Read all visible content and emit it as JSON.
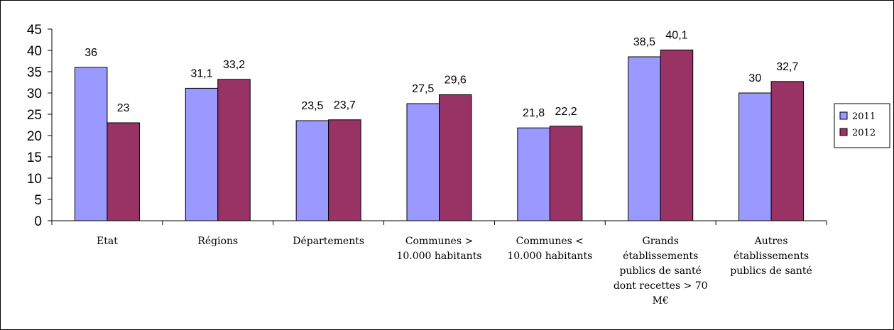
{
  "chart_data": {
    "type": "bar",
    "categories": [
      [
        "Etat"
      ],
      [
        "Régions"
      ],
      [
        "Départements"
      ],
      [
        "Communes >",
        "10.000 habitants"
      ],
      [
        "Communes <",
        "10.000 habitants"
      ],
      [
        "Grands",
        "établissements",
        "publics de santé",
        "dont recettes > 70",
        "M€"
      ],
      [
        "Autres",
        "établissements",
        "publics de santé"
      ]
    ],
    "series": [
      {
        "name": "2011",
        "color": "#9999ff",
        "values": [
          36,
          31.1,
          23.5,
          27.5,
          21.8,
          38.5,
          30
        ],
        "labels": [
          "36",
          "31,1",
          "23,5",
          "27,5",
          "21,8",
          "38,5",
          "30"
        ]
      },
      {
        "name": "2012",
        "color": "#993366",
        "values": [
          23,
          33.2,
          23.7,
          29.6,
          22.2,
          40.1,
          32.7
        ],
        "labels": [
          "23",
          "33,2",
          "23,7",
          "29,6",
          "22,2",
          "40,1",
          "32,7"
        ]
      }
    ],
    "yticks": [
      0,
      5,
      10,
      15,
      20,
      25,
      30,
      35,
      40,
      45
    ],
    "ylim": [
      0,
      45
    ],
    "grid": false,
    "legend": "right",
    "title": "",
    "xlabel": "",
    "ylabel": ""
  }
}
